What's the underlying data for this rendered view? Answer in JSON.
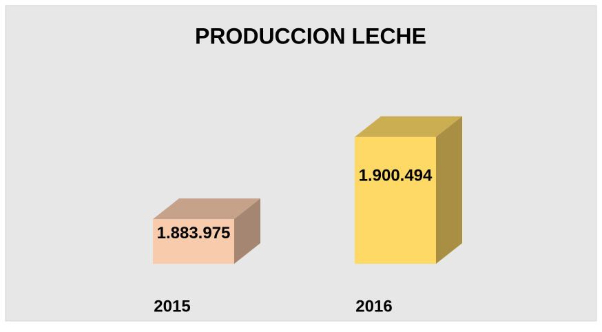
{
  "chart_data": {
    "type": "bar3d",
    "title": "PRODUCCION LECHE",
    "categories": [
      "2015",
      "2016"
    ],
    "values": [
      1883975,
      1900494
    ],
    "value_labels": [
      "1.883.975",
      "1.900.494"
    ],
    "colors": [
      "#f8cbad",
      "#ffd966"
    ],
    "ylim": [
      1875000,
      1902000
    ]
  }
}
